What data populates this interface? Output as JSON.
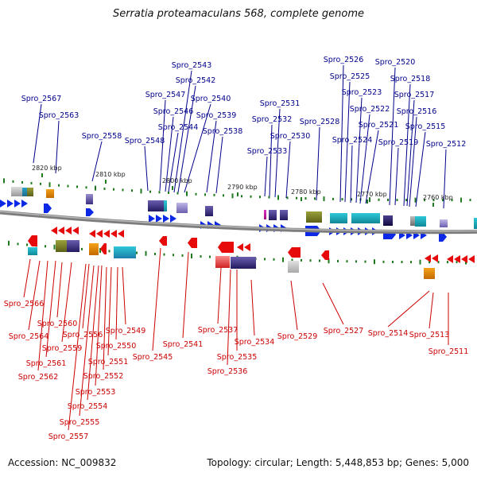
{
  "title": "Serratia proteamaculans 568, complete genome",
  "accession": "Accession: NC_009832",
  "summary": "Topology: circular; Length: 5,448,853 bp; Genes: 5,000",
  "colors": {
    "plus_label": "#00008b",
    "minus_label": "#cc0000",
    "plus_arrow": "#0a28e6",
    "minus_arrow": "#e60a0a",
    "tick": "#1f7a1f",
    "backbone": "#808080"
  },
  "scale_labels": [
    "2820 kbp",
    "2810 kbp",
    "2800 kbp",
    "2790 kbp",
    "2780 kbp",
    "2770 kbp",
    "2760 kbp"
  ],
  "plus_genes": [
    "Spro_2567",
    "Spro_2563",
    "Spro_2558",
    "Spro_2548",
    "Spro_2547",
    "Spro_2546",
    "Spro_2544",
    "Spro_2543",
    "Spro_2542",
    "Spro_2540",
    "Spro_2539",
    "Spro_2538",
    "Spro_2533",
    "Spro_2532",
    "Spro_2531",
    "Spro_2530",
    "Spro_2528",
    "Spro_2526",
    "Spro_2525",
    "Spro_2524",
    "Spro_2523",
    "Spro_2522",
    "Spro_2521",
    "Spro_2520",
    "Spro_2519",
    "Spro_2518",
    "Spro_2517",
    "Spro_2516",
    "Spro_2515",
    "Spro_2512"
  ],
  "minus_genes": [
    "Spro_2566",
    "Spro_2564",
    "Spro_2562",
    "Spro_2561",
    "Spro_2560",
    "Spro_2559",
    "Spro_2557",
    "Spro_2556",
    "Spro_2555",
    "Spro_2554",
    "Spro_2553",
    "Spro_2552",
    "Spro_2551",
    "Spro_2550",
    "Spro_2549",
    "Spro_2545",
    "Spro_2541",
    "Spro_2537",
    "Spro_2536",
    "Spro_2535",
    "Spro_2534",
    "Spro_2529",
    "Spro_2527",
    "Spro_2514",
    "Spro_2513",
    "Spro_2511"
  ]
}
